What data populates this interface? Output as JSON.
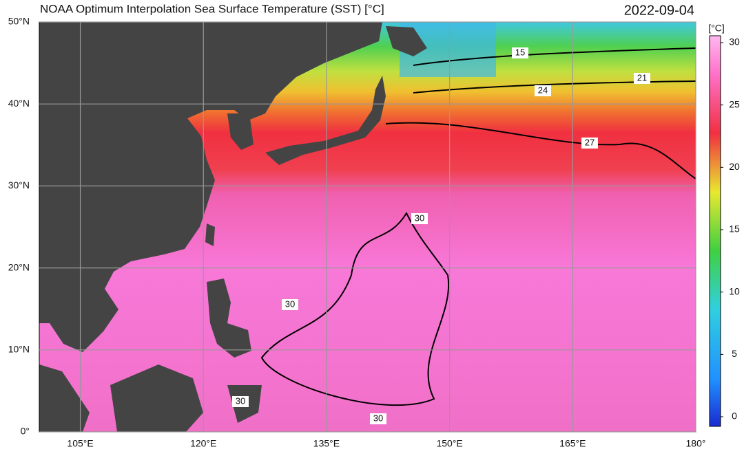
{
  "header": {
    "title": "NOAA Optimum Interpolation Sea Surface Temperature (SST) [°C]",
    "date": "2022-09-04"
  },
  "map": {
    "lon_range": [
      100,
      180
    ],
    "lat_range": [
      0,
      50
    ],
    "lon_ticks": [
      {
        "value": 105,
        "label": "105°E"
      },
      {
        "value": 120,
        "label": "120°E"
      },
      {
        "value": 135,
        "label": "135°E"
      },
      {
        "value": 150,
        "label": "150°E"
      },
      {
        "value": 165,
        "label": "165°E"
      },
      {
        "value": 180,
        "label": "180°"
      }
    ],
    "lat_ticks": [
      {
        "value": 0,
        "label": "0°"
      },
      {
        "value": 10,
        "label": "10°N"
      },
      {
        "value": 20,
        "label": "20°N"
      },
      {
        "value": 30,
        "label": "30°N"
      },
      {
        "value": 40,
        "label": "40°N"
      },
      {
        "value": 50,
        "label": "50°N"
      }
    ],
    "contour_labels": [
      15,
      21,
      24,
      27,
      30,
      30,
      30,
      30
    ]
  },
  "colorbar": {
    "unit": "[°C]",
    "range": [
      0,
      30
    ],
    "ticks": [
      0,
      5,
      10,
      15,
      20,
      25,
      30
    ]
  }
}
